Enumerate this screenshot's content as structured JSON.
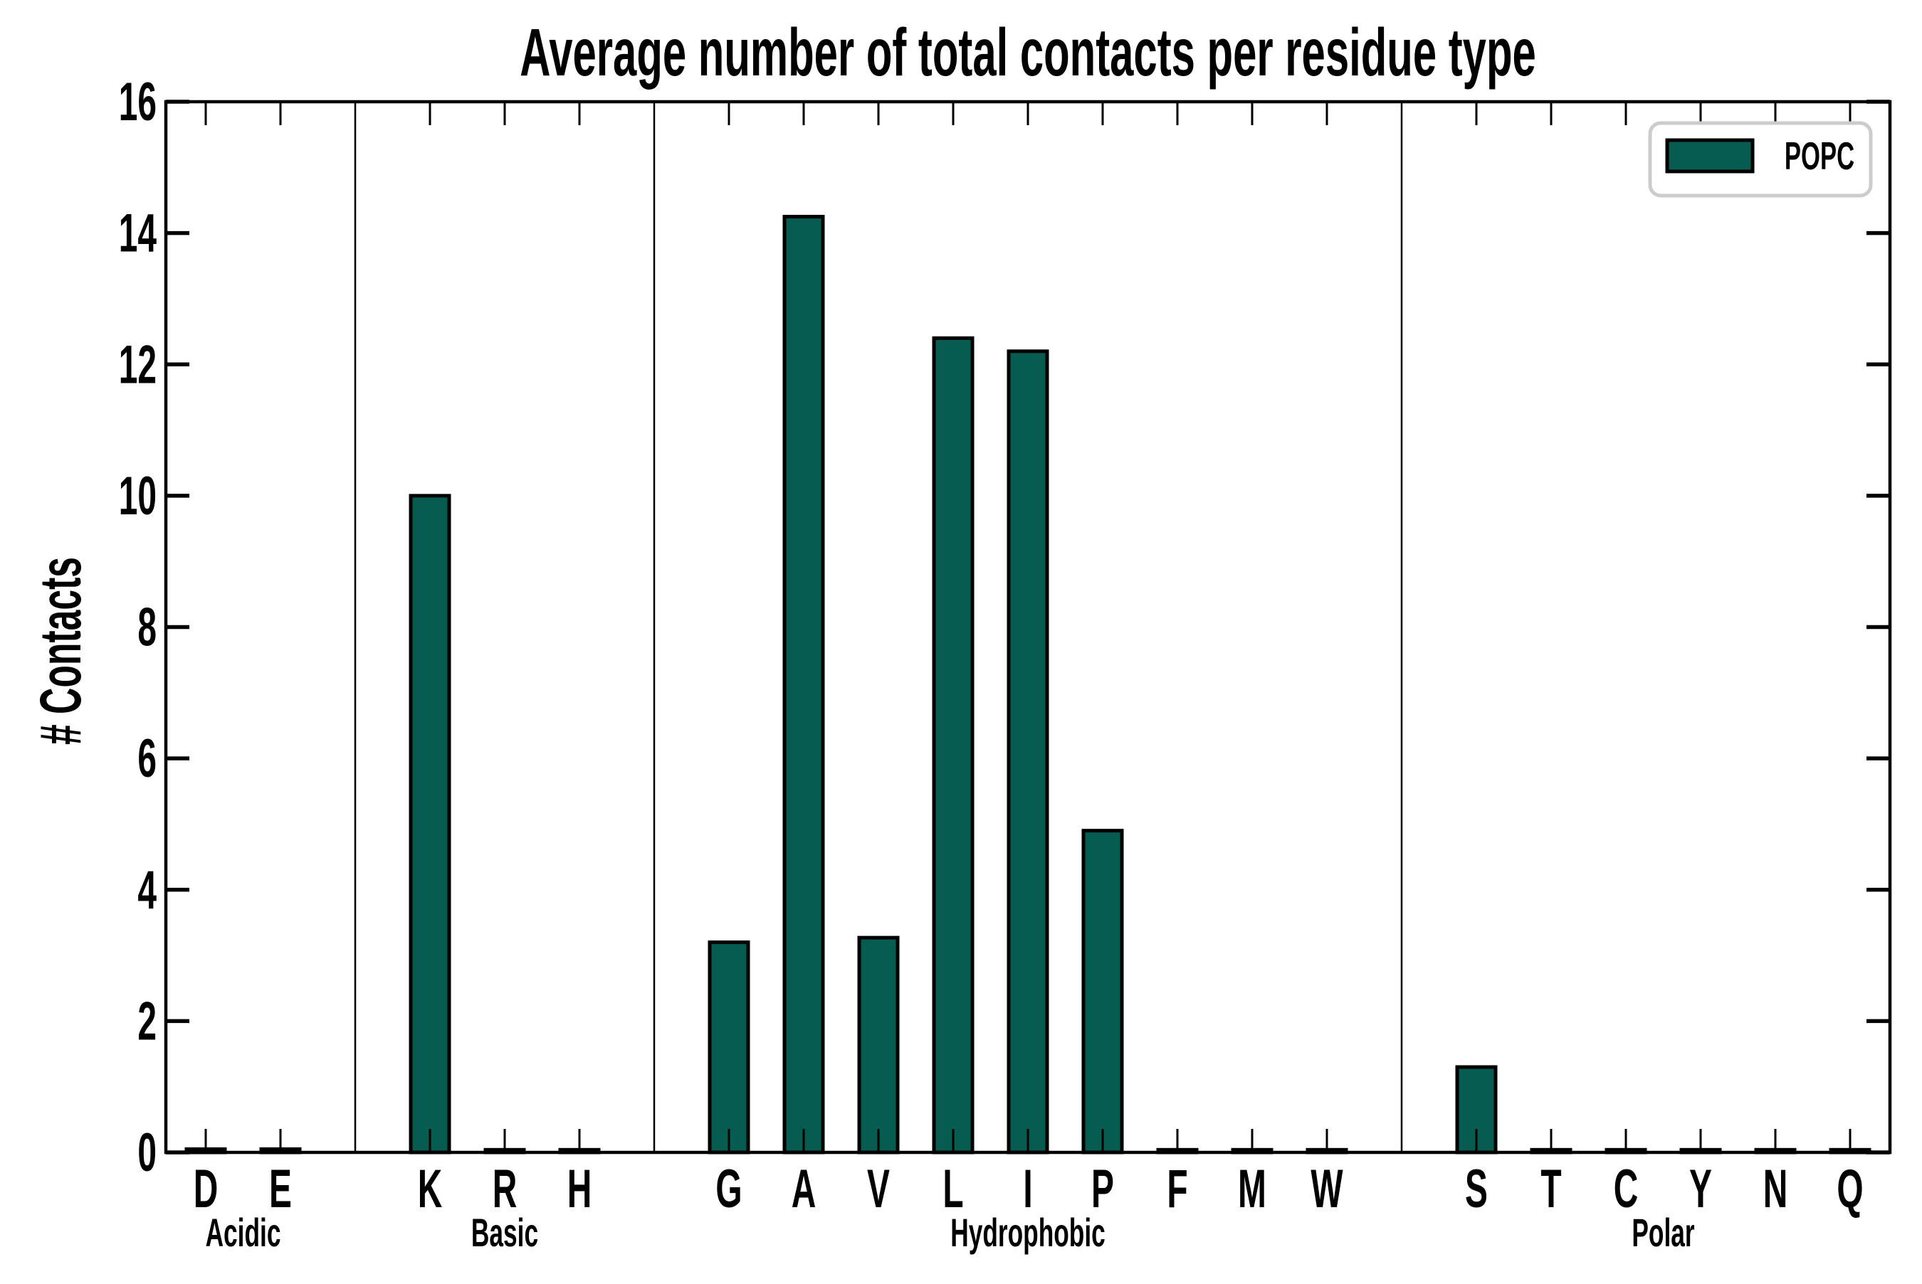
{
  "chart_data": {
    "type": "bar",
    "title": "Average number of total contacts per residue type",
    "ylabel": "# Contacts",
    "xlabel": "",
    "ylim": [
      0,
      16
    ],
    "yticks": [
      0,
      2,
      4,
      6,
      8,
      10,
      12,
      14,
      16
    ],
    "grid": false,
    "legend_position": "upper right",
    "legend": {
      "label": "POPC",
      "fill": "#065C50"
    },
    "bar_color": "#065C50",
    "bar_edge_color": "#000000",
    "separator_color": "#000000",
    "legend_border_color": "#cccccc",
    "groups": [
      {
        "name": "Acidic",
        "categories": [
          "D",
          "E"
        ],
        "values": [
          0.05,
          0.05
        ]
      },
      {
        "name": "Basic",
        "categories": [
          "K",
          "R",
          "H"
        ],
        "values": [
          10.0,
          0.04,
          0.04
        ]
      },
      {
        "name": "Hydrophobic",
        "categories": [
          "G",
          "A",
          "V",
          "L",
          "I",
          "P",
          "F",
          "M",
          "W"
        ],
        "values": [
          3.2,
          14.25,
          3.27,
          12.4,
          12.2,
          4.9,
          0.04,
          0.04,
          0.04
        ]
      },
      {
        "name": "Polar",
        "categories": [
          "S",
          "T",
          "C",
          "Y",
          "N",
          "Q"
        ],
        "values": [
          1.3,
          0.04,
          0.04,
          0.04,
          0.04,
          0.04
        ]
      }
    ]
  }
}
